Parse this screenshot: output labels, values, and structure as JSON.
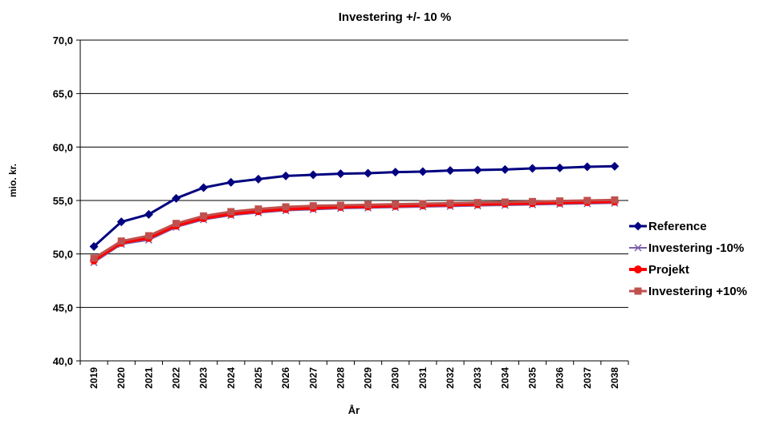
{
  "chart_data": {
    "type": "line",
    "title": "Investering +/- 10 %",
    "xlabel": "År",
    "ylabel": "mio. kr.",
    "ylim": [
      40,
      70
    ],
    "ytick_step": 5,
    "ytick_labels": [
      "40,0",
      "45,0",
      "50,0",
      "55,0",
      "60,0",
      "65,0",
      "70,0"
    ],
    "grid": "horizontal",
    "legend_position": "right",
    "categories": [
      "2019",
      "2020",
      "2021",
      "2022",
      "2023",
      "2024",
      "2025",
      "2026",
      "2027",
      "2028",
      "2029",
      "2030",
      "2031",
      "2032",
      "2033",
      "2034",
      "2035",
      "2036",
      "2037",
      "2038"
    ],
    "series": [
      {
        "name": "Reference",
        "color": "#000080",
        "marker": "diamond",
        "values": [
          50.7,
          53.0,
          53.7,
          55.2,
          56.2,
          56.7,
          57.0,
          57.3,
          57.4,
          57.5,
          57.55,
          57.65,
          57.7,
          57.8,
          57.85,
          57.9,
          58.0,
          58.05,
          58.15,
          58.2
        ]
      },
      {
        "name": "Investering -10%",
        "color": "#7B5EA7",
        "marker": "x",
        "values": [
          49.2,
          50.9,
          51.3,
          52.5,
          53.2,
          53.6,
          53.85,
          54.05,
          54.15,
          54.25,
          54.3,
          54.35,
          54.4,
          54.45,
          54.5,
          54.55,
          54.6,
          54.65,
          54.7,
          54.75
        ]
      },
      {
        "name": "Projekt",
        "color": "#FF0000",
        "marker": "circle",
        "values": [
          49.4,
          51.05,
          51.5,
          52.65,
          53.35,
          53.75,
          54.0,
          54.2,
          54.3,
          54.4,
          54.45,
          54.5,
          54.55,
          54.6,
          54.65,
          54.7,
          54.75,
          54.8,
          54.85,
          54.9
        ]
      },
      {
        "name": "Investering +10%",
        "color": "#C0504D",
        "marker": "square",
        "values": [
          49.6,
          51.2,
          51.7,
          52.85,
          53.55,
          53.95,
          54.2,
          54.4,
          54.5,
          54.55,
          54.6,
          54.65,
          54.7,
          54.75,
          54.8,
          54.85,
          54.9,
          54.95,
          55.0,
          55.05
        ]
      }
    ]
  }
}
